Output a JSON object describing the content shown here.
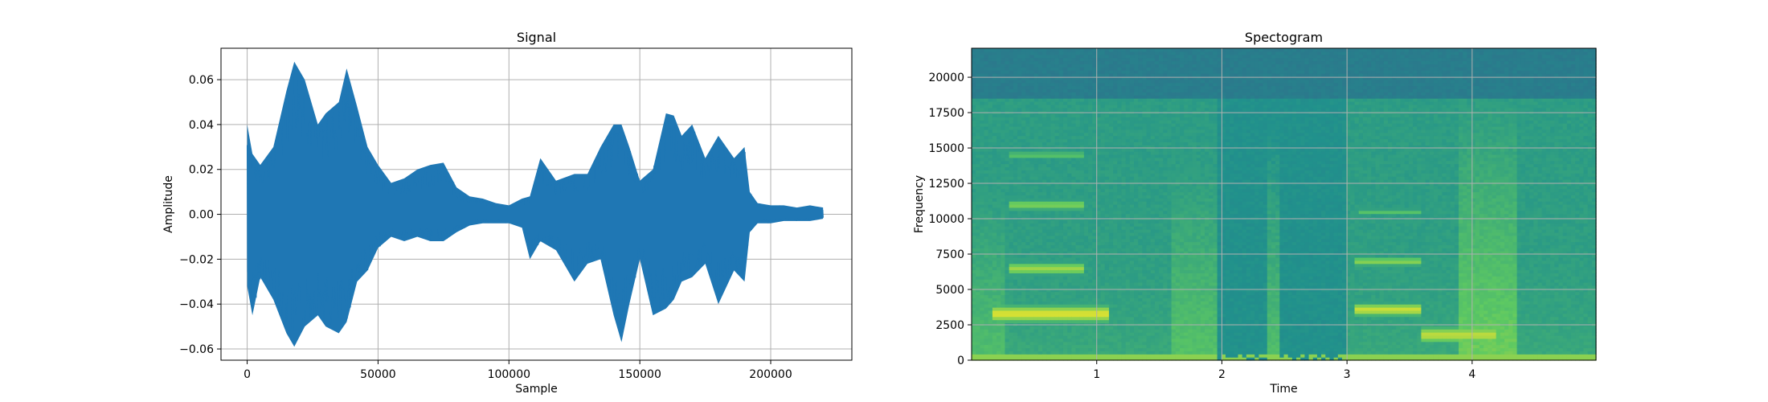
{
  "chart_data": [
    {
      "type": "line",
      "title": "Signal",
      "xlabel": "Sample",
      "ylabel": "Amplitude",
      "xlim": [
        -10000,
        231000
      ],
      "ylim": [
        -0.065,
        0.074
      ],
      "grid": true,
      "series_color": "#1f77b4",
      "xticks": [
        0,
        50000,
        100000,
        150000,
        200000
      ],
      "xtick_labels": [
        "0",
        "50000",
        "100000",
        "150000",
        "200000"
      ],
      "yticks": [
        0.06,
        0.04,
        0.02,
        0.0,
        -0.02,
        -0.04,
        -0.06
      ],
      "ytick_labels": [
        "0.06",
        "0.04",
        "0.02",
        "0.00",
        "−0.02",
        "−0.04",
        "−0.06"
      ],
      "envelope": {
        "x": [
          0,
          2000,
          5000,
          10000,
          15000,
          18000,
          22000,
          27000,
          30000,
          35000,
          38000,
          42000,
          46000,
          50000,
          55000,
          60000,
          65000,
          70000,
          75000,
          80000,
          85000,
          90000,
          95000,
          100000,
          105000,
          108000,
          112000,
          118000,
          125000,
          130000,
          135000,
          140000,
          143000,
          146000,
          150000,
          155000,
          160000,
          163000,
          166000,
          170000,
          175000,
          180000,
          186000,
          190000,
          192000,
          195000,
          200000,
          205000,
          210000,
          215000,
          220000
        ],
        "upper": [
          0.04,
          0.027,
          0.022,
          0.03,
          0.055,
          0.068,
          0.06,
          0.04,
          0.045,
          0.05,
          0.065,
          0.048,
          0.03,
          0.022,
          0.014,
          0.016,
          0.02,
          0.022,
          0.023,
          0.012,
          0.008,
          0.007,
          0.005,
          0.004,
          0.007,
          0.008,
          0.025,
          0.015,
          0.018,
          0.018,
          0.03,
          0.04,
          0.04,
          0.03,
          0.015,
          0.02,
          0.045,
          0.044,
          0.035,
          0.04,
          0.025,
          0.035,
          0.025,
          0.03,
          0.01,
          0.005,
          0.004,
          0.004,
          0.003,
          0.004,
          0.003
        ],
        "lower": [
          -0.032,
          -0.045,
          -0.028,
          -0.038,
          -0.053,
          -0.059,
          -0.05,
          -0.045,
          -0.05,
          -0.053,
          -0.048,
          -0.03,
          -0.025,
          -0.015,
          -0.01,
          -0.012,
          -0.01,
          -0.012,
          -0.012,
          -0.008,
          -0.005,
          -0.004,
          -0.004,
          -0.004,
          -0.006,
          -0.02,
          -0.012,
          -0.016,
          -0.03,
          -0.022,
          -0.02,
          -0.045,
          -0.057,
          -0.04,
          -0.02,
          -0.045,
          -0.042,
          -0.038,
          -0.03,
          -0.028,
          -0.022,
          -0.04,
          -0.025,
          -0.03,
          -0.008,
          -0.004,
          -0.004,
          -0.003,
          -0.003,
          -0.003,
          -0.002
        ]
      }
    },
    {
      "type": "heatmap",
      "title": "Spectogram",
      "xlabel": "Time",
      "ylabel": "Frequency",
      "xlim": [
        0,
        4.99
      ],
      "ylim": [
        0,
        22050
      ],
      "grid": true,
      "colormap": "viridis",
      "xticks": [
        1,
        2,
        3,
        4
      ],
      "xtick_labels": [
        "1",
        "2",
        "3",
        "4"
      ],
      "yticks": [
        0,
        2500,
        5000,
        7500,
        10000,
        12500,
        15000,
        17500,
        20000
      ],
      "ytick_labels": [
        "0",
        "2500",
        "5000",
        "7500",
        "10000",
        "12500",
        "15000",
        "17500",
        "20000"
      ],
      "background_level": 0.55,
      "top_band": {
        "from_freq": 18500,
        "to_freq": 22050,
        "level": 0.42
      },
      "quiet_regions": [
        {
          "t_start": 1.95,
          "t_end": 3.0,
          "f_start": 0,
          "f_end": 22050,
          "level": 0.5
        }
      ],
      "formant_bands": [
        {
          "t_start": 0.18,
          "t_end": 1.1,
          "freq": 3300,
          "width": 900,
          "level": 0.95
        },
        {
          "t_start": 0.3,
          "t_end": 0.9,
          "freq": 6500,
          "width": 700,
          "level": 0.85
        },
        {
          "t_start": 0.3,
          "t_end": 0.9,
          "freq": 11000,
          "width": 600,
          "level": 0.8
        },
        {
          "t_start": 0.3,
          "t_end": 0.9,
          "freq": 14500,
          "width": 500,
          "level": 0.72
        },
        {
          "t_start": 3.05,
          "t_end": 3.6,
          "freq": 3600,
          "width": 700,
          "level": 0.92
        },
        {
          "t_start": 3.05,
          "t_end": 3.6,
          "freq": 7000,
          "width": 500,
          "level": 0.82
        },
        {
          "t_start": 3.1,
          "t_end": 3.6,
          "freq": 10500,
          "width": 400,
          "level": 0.72
        },
        {
          "t_start": 3.6,
          "t_end": 4.2,
          "freq": 1800,
          "width": 900,
          "level": 0.9
        }
      ],
      "broadband_bursts": [
        {
          "t_start": 0.0,
          "t_end": 0.25,
          "level": 0.7
        },
        {
          "t_start": 1.6,
          "t_end": 1.95,
          "level": 0.72
        },
        {
          "t_start": 2.35,
          "t_end": 2.45,
          "level": 0.7
        },
        {
          "t_start": 3.9,
          "t_end": 4.35,
          "level": 0.78
        }
      ]
    }
  ]
}
